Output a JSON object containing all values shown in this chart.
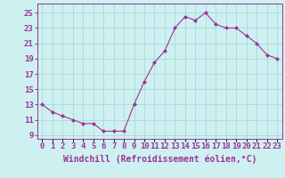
{
  "hours": [
    0,
    1,
    2,
    3,
    4,
    5,
    6,
    7,
    8,
    9,
    10,
    11,
    12,
    13,
    14,
    15,
    16,
    17,
    18,
    19,
    20,
    21,
    22,
    23
  ],
  "values": [
    13.0,
    12.0,
    11.5,
    11.0,
    10.5,
    10.5,
    9.5,
    9.5,
    9.5,
    13.0,
    16.0,
    18.5,
    20.0,
    23.0,
    24.5,
    24.0,
    25.0,
    23.5,
    23.0,
    23.0,
    22.0,
    21.0,
    19.5,
    19.0
  ],
  "line_color": "#993399",
  "marker_color": "#993399",
  "bg_color": "#cff0f0",
  "grid_color": "#aadddd",
  "xlabel": "Windchill (Refroidissement éolien,°C)",
  "ylabel_ticks": [
    9,
    11,
    13,
    15,
    17,
    19,
    21,
    23,
    25
  ],
  "ylim": [
    8.5,
    26.2
  ],
  "xlim": [
    -0.5,
    23.5
  ],
  "tick_color": "#993399",
  "axis_label_color": "#993399",
  "font_size_xlabel": 7.0,
  "font_size_ytick": 6.5,
  "font_size_xtick": 6.5
}
